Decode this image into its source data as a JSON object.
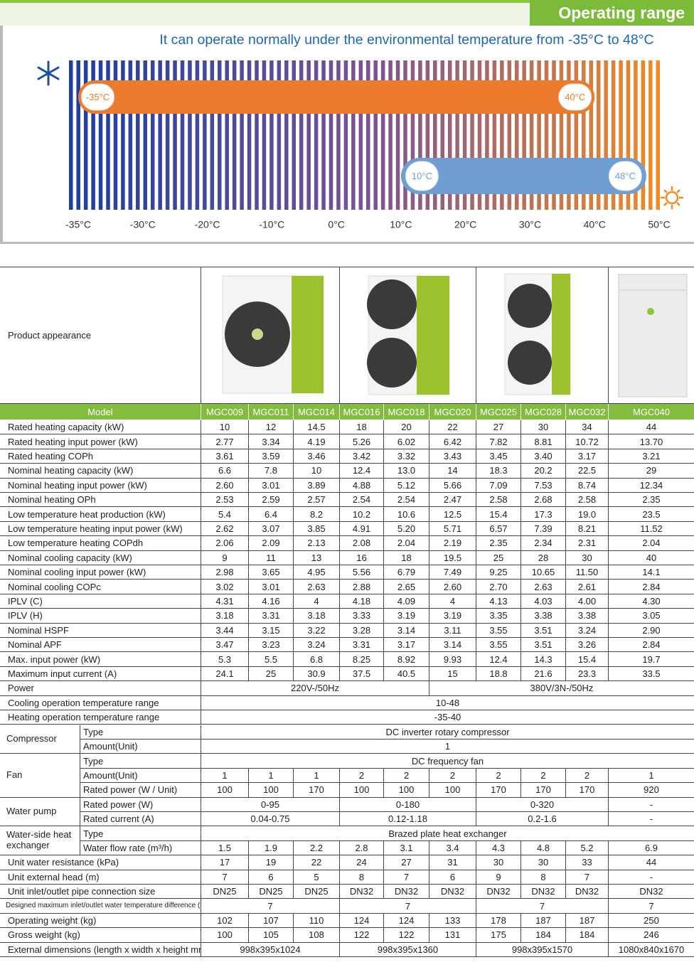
{
  "header": {
    "title": "Operating range",
    "subtitle": "It can operate normally under the environmental temperature from -35°C to 48°C"
  },
  "range_chart": {
    "ticks": [
      {
        "value": -35,
        "label": "-35°C"
      },
      {
        "value": -30,
        "label": "-30°C"
      },
      {
        "value": -20,
        "label": "-20°C"
      },
      {
        "value": -10,
        "label": "-10°C"
      },
      {
        "value": 0,
        "label": "0°C"
      },
      {
        "value": 10,
        "label": "10°C"
      },
      {
        "value": 20,
        "label": "20°C"
      },
      {
        "value": 30,
        "label": "30°C"
      },
      {
        "value": 40,
        "label": "40°C"
      },
      {
        "value": 50,
        "label": "50°C"
      }
    ],
    "ranges": [
      {
        "low": {
          "value": -35,
          "label": "-35°C"
        },
        "high": {
          "value": 40,
          "label": "40°C"
        },
        "color": "#ec7b2c"
      },
      {
        "low": {
          "value": 10,
          "label": "10°C"
        },
        "high": {
          "value": 48,
          "label": "48°C"
        },
        "color": "#6f9fd2"
      }
    ]
  },
  "table": {
    "appearance_label": "Product appearance",
    "model_label": "Model",
    "models": [
      "MGC009",
      "MGC011",
      "MGC014",
      "MGC016",
      "MGC018",
      "MGC020",
      "MGC025",
      "MGC028",
      "MGC032",
      "MGC040"
    ],
    "rows": [
      {
        "label": "Rated heating capacity (kW)",
        "values": [
          "10",
          "12",
          "14.5",
          "18",
          "20",
          "22",
          "27",
          "30",
          "34",
          "44"
        ]
      },
      {
        "label": "Rated heating input power (kW)",
        "values": [
          "2.77",
          "3.34",
          "4.19",
          "5.26",
          "6.02",
          "6.42",
          "7.82",
          "8.81",
          "10.72",
          "13.70"
        ]
      },
      {
        "label": "Rated heating COPh",
        "values": [
          "3.61",
          "3.59",
          "3.46",
          "3.42",
          "3.32",
          "3.43",
          "3.45",
          "3.40",
          "3.17",
          "3.21"
        ]
      },
      {
        "label": "Nominal heating capacity (kW)",
        "values": [
          "6.6",
          "7.8",
          "10",
          "12.4",
          "13.0",
          "14",
          "18.3",
          "20.2",
          "22.5",
          "29"
        ]
      },
      {
        "label": "Nominal heating input power (kW)",
        "values": [
          "2.60",
          "3.01",
          "3.89",
          "4.88",
          "5.12",
          "5.66",
          "7.09",
          "7.53",
          "8.74",
          "12.34"
        ]
      },
      {
        "label": "Nominal heating OPh",
        "values": [
          "2.53",
          "2.59",
          "2.57",
          "2.54",
          "2.54",
          "2.47",
          "2.58",
          "2.68",
          "2.58",
          "2.35"
        ]
      },
      {
        "label": "Low temperature heat production (kW)",
        "values": [
          "5.4",
          "6.4",
          "8.2",
          "10.2",
          "10.6",
          "12.5",
          "15.4",
          "17.3",
          "19.0",
          "23.5"
        ]
      },
      {
        "label": "Low temperature heating input power (kW)",
        "values": [
          "2.62",
          "3.07",
          "3.85",
          "4.91",
          "5.20",
          "5.71",
          "6.57",
          "7.39",
          "8.21",
          "11.52"
        ]
      },
      {
        "label": "Low temperature heating COPdh",
        "values": [
          "2.06",
          "2.09",
          "2.13",
          "2.08",
          "2.04",
          "2.19",
          "2.35",
          "2.34",
          "2.31",
          "2.04"
        ]
      },
      {
        "label": "Nominal cooling capacity (kW)",
        "values": [
          "9",
          "11",
          "13",
          "16",
          "18",
          "19.5",
          "25",
          "28",
          "30",
          "40"
        ]
      },
      {
        "label": "Nominal cooling input power (kW)",
        "values": [
          "2.98",
          "3.65",
          "4.95",
          "5.56",
          "6.79",
          "7.49",
          "9.25",
          "10.65",
          "11.50",
          "14.1"
        ]
      },
      {
        "label": "Nominal cooling COPc",
        "values": [
          "3.02",
          "3.01",
          "2.63",
          "2.88",
          "2.65",
          "2.60",
          "2.70",
          "2.63",
          "2.61",
          "2.84"
        ]
      },
      {
        "label": "IPLV (C)",
        "values": [
          "4.31",
          "4.16",
          "4",
          "4.18",
          "4.09",
          "4",
          "4.13",
          "4.03",
          "4.00",
          "4.30"
        ]
      },
      {
        "label": "IPLV (H)",
        "values": [
          "3.18",
          "3.31",
          "3.18",
          "3.33",
          "3.19",
          "3.19",
          "3.35",
          "3.38",
          "3.38",
          "3.05"
        ]
      },
      {
        "label": "Nominal HSPF",
        "values": [
          "3.44",
          "3.15",
          "3.22",
          "3.28",
          "3.14",
          "3.11",
          "3.55",
          "3.51",
          "3.24",
          "2.90"
        ]
      },
      {
        "label": "Nominal APF",
        "values": [
          "3.47",
          "3.23",
          "3.24",
          "3.31",
          "3.17",
          "3.14",
          "3.55",
          "3.51",
          "3.26",
          "2.84"
        ]
      },
      {
        "label": "Max. input power (kW)",
        "values": [
          "5.3",
          "5.5",
          "6.8",
          "8.25",
          "8.92",
          "9.93",
          "12.4",
          "14.3",
          "15.4",
          "19.7"
        ]
      },
      {
        "label": "Maximum input current (A)",
        "values": [
          "24.1",
          "25",
          "30.9",
          "37.5",
          "40.5",
          "15",
          "18.8",
          "21.6",
          "23.3",
          "33.5"
        ]
      },
      {
        "label": "Power",
        "values": [
          "220V-/50Hz",
          "380V/3N-/50Hz"
        ]
      },
      {
        "label": "Cooling operation temperature range",
        "values": [
          "10-48"
        ]
      },
      {
        "label": "Heating operation temperature range",
        "values": [
          "-35-40"
        ]
      },
      {
        "group": "Compressor",
        "rows": [
          {
            "label": "Type",
            "values": [
              "DC inverter rotary compressor"
            ]
          },
          {
            "label": "Amount(Unit)",
            "values": [
              "1"
            ]
          }
        ]
      },
      {
        "group": "Fan",
        "rows": [
          {
            "label": "Type",
            "values": [
              "DC frequency fan"
            ]
          },
          {
            "label": "Amount(Unit)",
            "values": [
              "1",
              "1",
              "1",
              "2",
              "2",
              "2",
              "2",
              "2",
              "2",
              "1"
            ]
          },
          {
            "label": "Rated power (W / Unit)",
            "values": [
              "100",
              "100",
              "170",
              "100",
              "100",
              "100",
              "170",
              "170",
              "170",
              "920"
            ]
          }
        ]
      },
      {
        "group": "Water pump",
        "rows": [
          {
            "label": "Rated power (W)",
            "values": [
              "0-95",
              "0-180",
              "0-320",
              "-"
            ]
          },
          {
            "label": "Rated current (A)",
            "values": [
              "0.04-0.75",
              "0.12-1.18",
              "0.2-1.6",
              "-"
            ]
          }
        ]
      },
      {
        "group": "Water-side heat exchanger",
        "rows": [
          {
            "label": "Type",
            "values": [
              "Brazed plate heat exchanger"
            ]
          },
          {
            "label": "Water flow rate (m³/h)",
            "values": [
              "1.5",
              "1.9",
              "2.2",
              "2.8",
              "3.1",
              "3.4",
              "4.3",
              "4.8",
              "5.2",
              "6.9"
            ]
          }
        ]
      },
      {
        "label": "Unit water resistance (kPa)",
        "values": [
          "17",
          "19",
          "22",
          "24",
          "27",
          "31",
          "30",
          "30",
          "33",
          "44"
        ]
      },
      {
        "label": "Unit external head (m)",
        "values": [
          "7",
          "6",
          "5",
          "8",
          "7",
          "6",
          "9",
          "8",
          "7",
          "-"
        ]
      },
      {
        "label": "Unit inlet/outlet pipe connection size",
        "values": [
          "DN25",
          "DN25",
          "DN25",
          "DN32",
          "DN32",
          "DN32",
          "DN32",
          "DN32",
          "DN32",
          "DN32"
        ]
      },
      {
        "label": "Designed maximum inlet/outlet water temperature difference (°C)",
        "values": [
          "7",
          "7",
          "7",
          "7"
        ]
      },
      {
        "label": "Operating weight (kg)",
        "values": [
          "102",
          "107",
          "110",
          "124",
          "124",
          "133",
          "178",
          "187",
          "187",
          "250"
        ]
      },
      {
        "label": "Gross weight (kg)",
        "values": [
          "100",
          "105",
          "108",
          "122",
          "122",
          "131",
          "175",
          "184",
          "184",
          "246"
        ]
      },
      {
        "label": "External dimensions (length x width x height mm)",
        "values": [
          "998x395x1024",
          "998x395x1360",
          "998x395x1570",
          "1080x840x1670"
        ]
      }
    ]
  }
}
